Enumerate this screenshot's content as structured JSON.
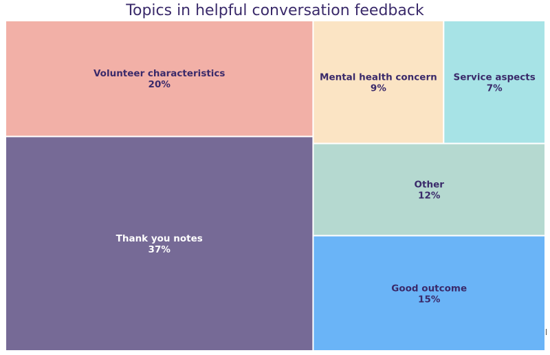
{
  "chart_data": {
    "type": "treemap",
    "title": "Topics in helpful conversation feedback",
    "unit": "%",
    "items": [
      {
        "label": "Thank you notes",
        "value": 37,
        "color": "#766a96",
        "text_color": "#ffffff"
      },
      {
        "label": "Volunteer characteristics",
        "value": 20,
        "color": "#f2b0a7",
        "text_color": "#3a2a6a"
      },
      {
        "label": "Good outcome",
        "value": 15,
        "color": "#6ab4f7",
        "text_color": "#3a2a6a"
      },
      {
        "label": "Other",
        "value": 12,
        "color": "#b5d9d0",
        "text_color": "#3a2a6a"
      },
      {
        "label": "Mental health concern",
        "value": 9,
        "color": "#fbe4c4",
        "text_color": "#3a2a6a"
      },
      {
        "label": "Service aspects",
        "value": 7,
        "color": "#a7e3e6",
        "text_color": "#3a2a6a"
      }
    ]
  }
}
